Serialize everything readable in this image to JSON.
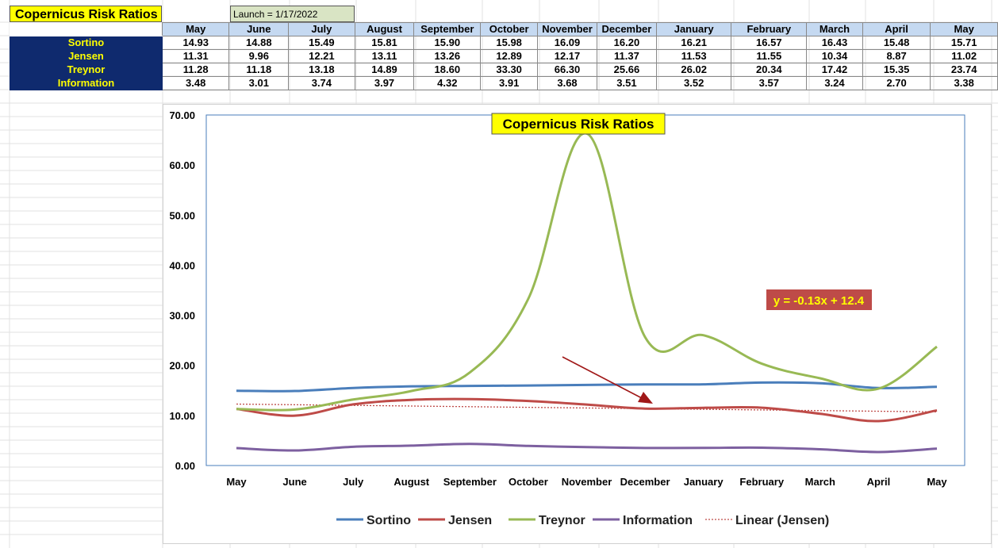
{
  "sheet": {
    "title": "Copernicus Risk Ratios",
    "launch": "Launch = 1/17/2022"
  },
  "table": {
    "months": [
      "May",
      "June",
      "July",
      "August",
      "September",
      "October",
      "November",
      "December",
      "January",
      "February",
      "March",
      "April",
      "May"
    ],
    "rows": [
      {
        "label": "Sortino",
        "values": [
          "14.93",
          "14.88",
          "15.49",
          "15.81",
          "15.90",
          "15.98",
          "16.09",
          "16.20",
          "16.21",
          "16.57",
          "16.43",
          "15.48",
          "15.71"
        ]
      },
      {
        "label": "Jensen",
        "values": [
          "11.31",
          "9.96",
          "12.21",
          "13.11",
          "13.26",
          "12.89",
          "12.17",
          "11.37",
          "11.53",
          "11.55",
          "10.34",
          "8.87",
          "11.02"
        ]
      },
      {
        "label": "Treynor",
        "values": [
          "11.28",
          "11.18",
          "13.18",
          "14.89",
          "18.60",
          "33.30",
          "66.30",
          "25.66",
          "26.02",
          "20.34",
          "17.42",
          "15.35",
          "23.74"
        ]
      },
      {
        "label": "Information",
        "values": [
          "3.48",
          "3.01",
          "3.74",
          "3.97",
          "4.32",
          "3.91",
          "3.68",
          "3.51",
          "3.52",
          "3.57",
          "3.24",
          "2.70",
          "3.38"
        ]
      }
    ]
  },
  "chart_data": {
    "type": "line",
    "title": "Copernicus Risk Ratios",
    "categories": [
      "May",
      "June",
      "July",
      "August",
      "September",
      "October",
      "November",
      "December",
      "January",
      "February",
      "March",
      "April",
      "May"
    ],
    "series": [
      {
        "name": "Sortino",
        "color": "#4a7ebb",
        "values": [
          14.93,
          14.88,
          15.49,
          15.81,
          15.9,
          15.98,
          16.09,
          16.2,
          16.21,
          16.57,
          16.43,
          15.48,
          15.71
        ]
      },
      {
        "name": "Jensen",
        "color": "#be4b48",
        "values": [
          11.31,
          9.96,
          12.21,
          13.11,
          13.26,
          12.89,
          12.17,
          11.37,
          11.53,
          11.55,
          10.34,
          8.87,
          11.02
        ]
      },
      {
        "name": "Treynor",
        "color": "#98b954",
        "values": [
          11.28,
          11.18,
          13.18,
          14.89,
          18.6,
          33.3,
          66.3,
          25.66,
          26.02,
          20.34,
          17.42,
          15.35,
          23.74
        ]
      },
      {
        "name": "Information",
        "color": "#7d60a0",
        "values": [
          3.48,
          3.01,
          3.74,
          3.97,
          4.32,
          3.91,
          3.68,
          3.51,
          3.52,
          3.57,
          3.24,
          2.7,
          3.38
        ]
      }
    ],
    "trendline": {
      "name": "Linear (Jensen)",
      "of": "Jensen",
      "slope": -0.13,
      "intercept": 12.4,
      "color": "#be4b48",
      "equation": "y = -0.13x + 12.4"
    },
    "yticks": [
      "0.00",
      "10.00",
      "20.00",
      "30.00",
      "40.00",
      "50.00",
      "60.00",
      "70.00"
    ],
    "ylim": [
      0,
      70
    ],
    "grid": false,
    "legend": "bottom"
  }
}
